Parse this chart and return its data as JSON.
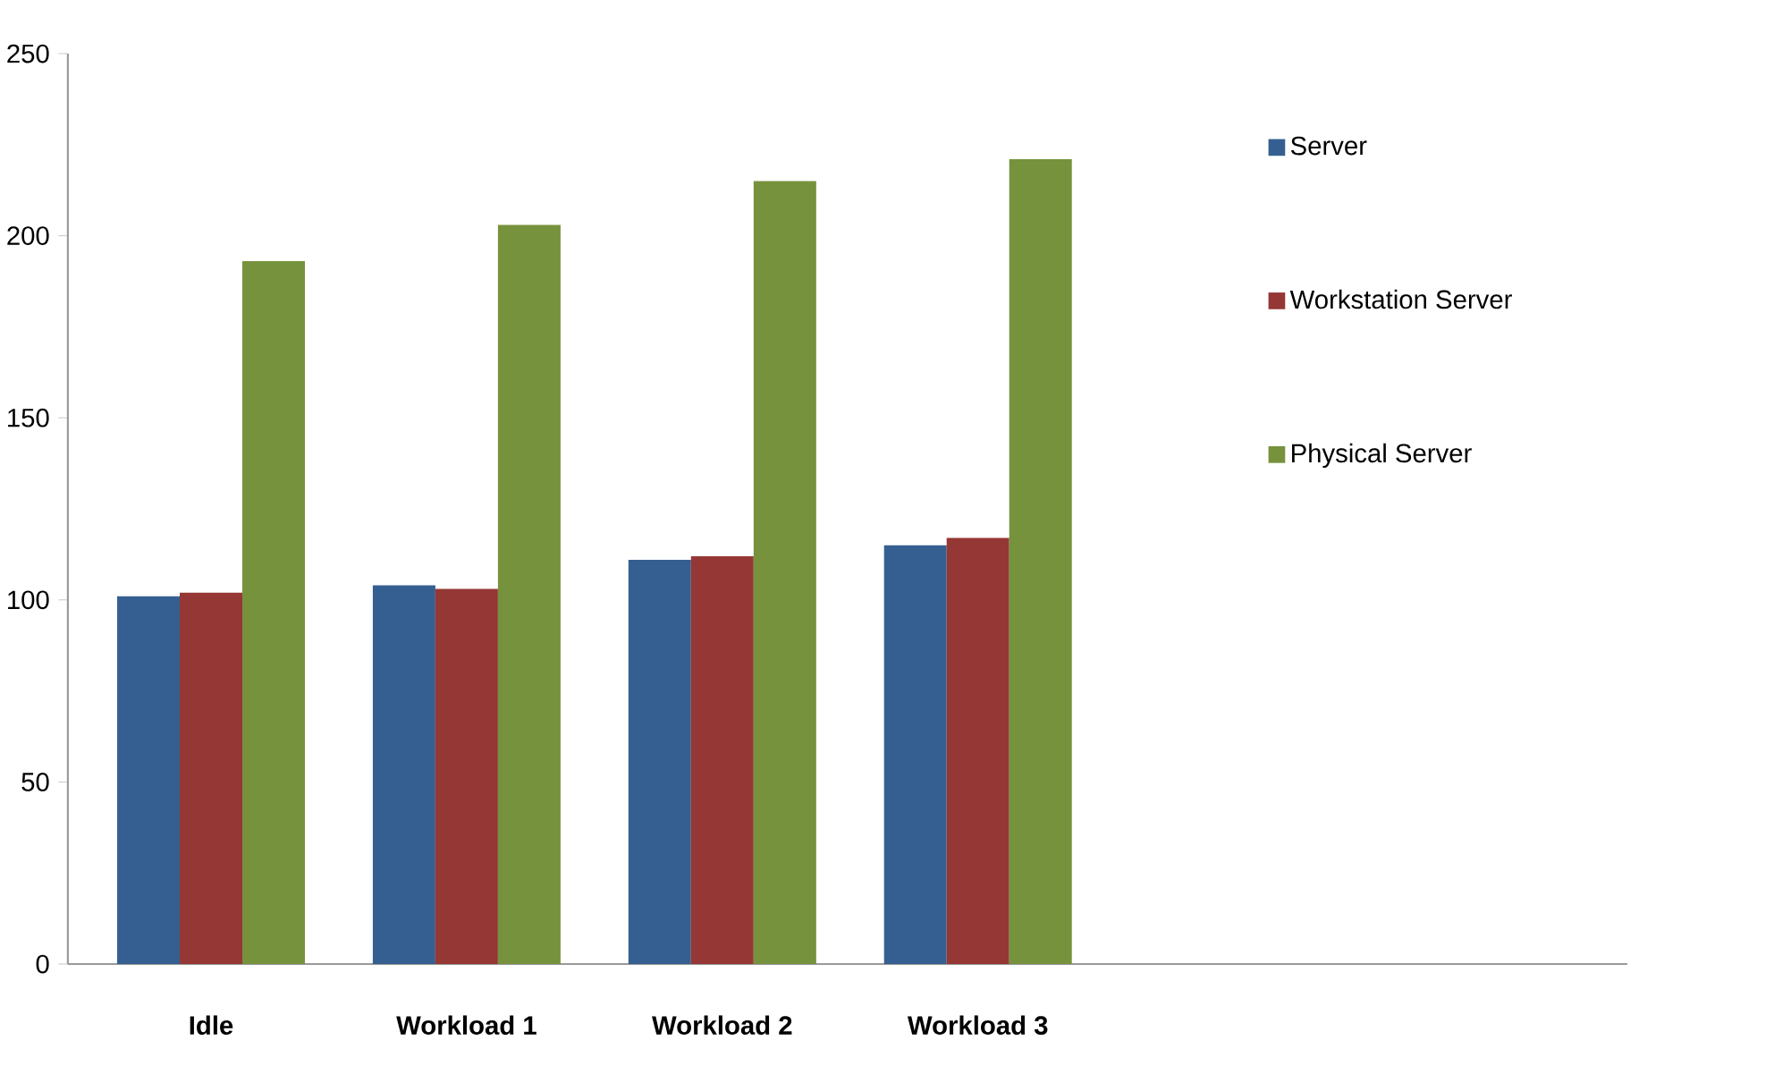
{
  "chart_data": {
    "type": "bar",
    "categories": [
      "Idle",
      "Workload  1",
      "Workload  2",
      "Workload  3"
    ],
    "series": [
      {
        "name": "Server",
        "color": "#365f91",
        "values": [
          101,
          104,
          111,
          115
        ]
      },
      {
        "name": "Workstation Server",
        "color": "#953735",
        "values": [
          102,
          103,
          112,
          117
        ]
      },
      {
        "name": "Physical Server",
        "color": "#76923c",
        "values": [
          193,
          203,
          215,
          221
        ]
      }
    ],
    "ylim": [
      0,
      250
    ],
    "yticks": [
      0,
      50,
      100,
      150,
      200,
      250
    ],
    "grid": false,
    "legend": "right"
  }
}
